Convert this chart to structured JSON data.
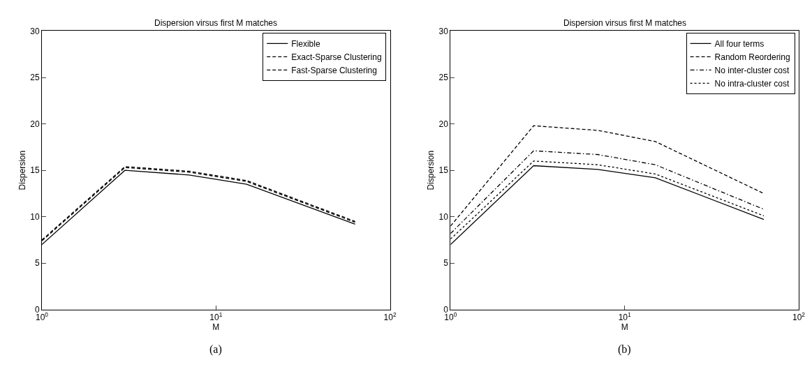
{
  "chart_data": [
    {
      "type": "line",
      "title": "Dispersion virsus first M matches",
      "xlabel": "M",
      "ylabel": "Dispersion",
      "log": "x",
      "x": [
        1,
        3,
        7,
        15,
        63
      ],
      "xlim": [
        1,
        100
      ],
      "xticks": [
        {
          "value": 1,
          "label": "10$^{0}$"
        },
        {
          "value": 10,
          "label": "10$^{1}$"
        },
        {
          "value": 100,
          "label": "10$^{2}$"
        }
      ],
      "ylim": [
        0,
        30
      ],
      "yticks": [
        0,
        5,
        10,
        15,
        20,
        25,
        30
      ],
      "legend": "top right",
      "marker": "none",
      "annotations": [
        "(a)"
      ],
      "series": [
        {
          "name": "Flexible",
          "color": "#000000",
          "line_style": "solid",
          "values": [
            7.0,
            15.0,
            14.5,
            13.5,
            9.2
          ]
        },
        {
          "name": "Exact-Sparse Clustering",
          "color": "#000000",
          "line_style": "dashed",
          "values": [
            7.5,
            15.4,
            14.9,
            13.9,
            9.5
          ]
        },
        {
          "name": "Fast-Sparse Clustering",
          "color": "#000000",
          "line_style": "dashed",
          "values": [
            7.4,
            15.3,
            14.8,
            13.8,
            9.4
          ]
        }
      ]
    },
    {
      "type": "line",
      "title": "Dispersion virsus first M matches",
      "xlabel": "M",
      "ylabel": "Dispersion",
      "log": "x",
      "x": [
        1,
        3,
        7,
        15,
        63
      ],
      "xlim": [
        1,
        100
      ],
      "xticks": [
        {
          "value": 1,
          "label": "10$^{0}$"
        },
        {
          "value": 10,
          "label": "10$^{1}$"
        },
        {
          "value": 100,
          "label": "10$^{2}$"
        }
      ],
      "ylim": [
        0,
        30
      ],
      "yticks": [
        0,
        5,
        10,
        15,
        20,
        25,
        30
      ],
      "legend": "top right",
      "marker": "none",
      "annotations": [
        "(b)"
      ],
      "series": [
        {
          "name": "All four terms",
          "color": "#000000",
          "line_style": "solid",
          "values": [
            7.0,
            15.5,
            15.1,
            14.2,
            9.7
          ]
        },
        {
          "name": "Random Reordering",
          "color": "#000000",
          "line_style": "dashed",
          "values": [
            9.0,
            19.8,
            19.3,
            18.1,
            12.5
          ]
        },
        {
          "name": "No inter-cluster cost",
          "color": "#000000",
          "line_style": "dashdot",
          "values": [
            8.2,
            17.1,
            16.7,
            15.6,
            10.8
          ]
        },
        {
          "name": "No intra-cluster cost",
          "color": "#000000",
          "line_style": "dotted",
          "values": [
            7.6,
            16.0,
            15.6,
            14.6,
            10.1
          ]
        }
      ]
    }
  ]
}
